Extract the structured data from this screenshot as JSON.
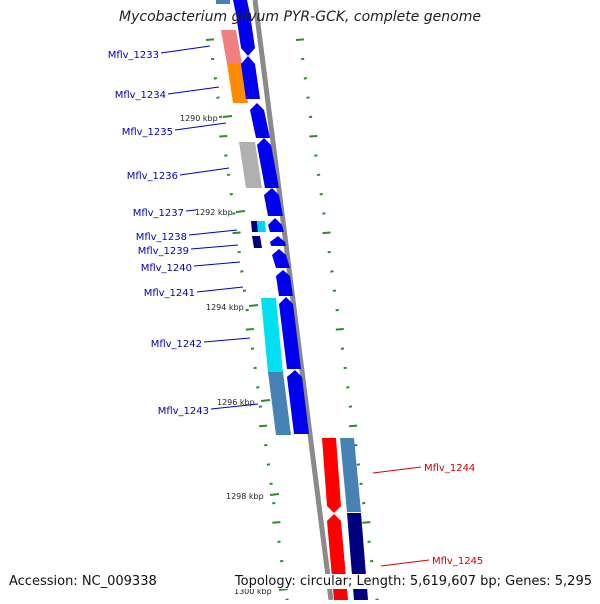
{
  "title": "Mycobacterium gilvum PYR-GCK, complete genome",
  "accession_text": "Accession: NC_009338",
  "topology_text": "Topology: circular; Length: 5,619,607 bp; Genes: 5,295",
  "colors": {
    "backbone": "#8a8a8a",
    "tick": "#2e8b2e",
    "label_left": "#0000c0",
    "label_right": "#d40000",
    "forward_gene": "#0000ee",
    "reverse_gene": "#ff0000"
  },
  "scale_labels": [
    "1290 kbp",
    "1292 kbp",
    "1294 kbp",
    "1296 kbp",
    "1298 kbp",
    "1300 kbp"
  ],
  "genes_left": [
    {
      "label": "Mflv_1233"
    },
    {
      "label": "Mflv_1234"
    },
    {
      "label": "Mflv_1235"
    },
    {
      "label": "Mflv_1236"
    },
    {
      "label": "Mflv_1237"
    },
    {
      "label": "Mflv_1238"
    },
    {
      "label": "Mflv_1239"
    },
    {
      "label": "Mflv_1240"
    },
    {
      "label": "Mflv_1241"
    },
    {
      "label": "Mflv_1242"
    },
    {
      "label": "Mflv_1243"
    }
  ],
  "genes_right": [
    {
      "label": "Mflv_1244"
    },
    {
      "label": "Mflv_1245"
    }
  ]
}
